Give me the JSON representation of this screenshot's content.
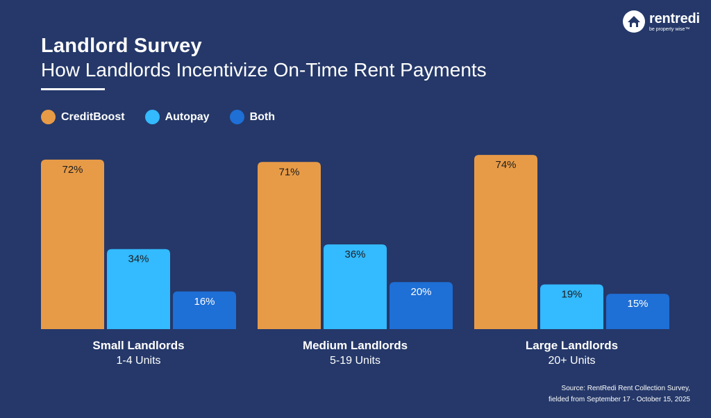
{
  "brand": {
    "name": "rentredi",
    "tagline": "be property wise™"
  },
  "chart_data": {
    "type": "bar",
    "title": "Landlord Survey",
    "subtitle": "How Landlords Incentivize On-Time Rent Payments",
    "categories": [
      {
        "name": "Small Landlords",
        "sub": "1-4 Units"
      },
      {
        "name": "Medium Landlords",
        "sub": "5-19 Units"
      },
      {
        "name": "Large Landlords",
        "sub": "20+ Units"
      }
    ],
    "series": [
      {
        "name": "CreditBoost",
        "color": "#e89b47",
        "values": [
          72,
          71,
          74
        ]
      },
      {
        "name": "Autopay",
        "color": "#33baff",
        "values": [
          34,
          36,
          19
        ]
      },
      {
        "name": "Both",
        "color": "#1e6fd6",
        "values": [
          16,
          20,
          15
        ]
      }
    ],
    "value_suffix": "%",
    "ylim": [
      0,
      100
    ],
    "grid": false,
    "legend_position": "top-left",
    "source": [
      "Source: RentRedi Rent Collection Survey,",
      "fielded from September 17 - October 15, 2025"
    ]
  }
}
